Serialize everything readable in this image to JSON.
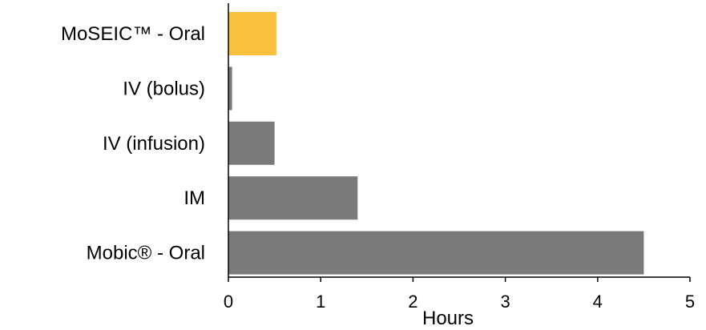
{
  "chart_data": {
    "type": "bar",
    "orientation": "horizontal",
    "categories": [
      "MoSEIC™ - Oral",
      "IV (bolus)",
      "IV (infusion)",
      "IM",
      "Mobic® - Oral"
    ],
    "values": [
      0.52,
      0.04,
      0.5,
      1.4,
      4.5
    ],
    "bar_colors": [
      "#F9C03D",
      "#7A7A7A",
      "#7A7A7A",
      "#7A7A7A",
      "#7A7A7A"
    ],
    "xlabel": "Hours",
    "ylabel": "",
    "xlim": [
      0,
      5
    ],
    "xticks": [
      0,
      1,
      2,
      3,
      4,
      5
    ],
    "grid": false,
    "legend": "none"
  }
}
